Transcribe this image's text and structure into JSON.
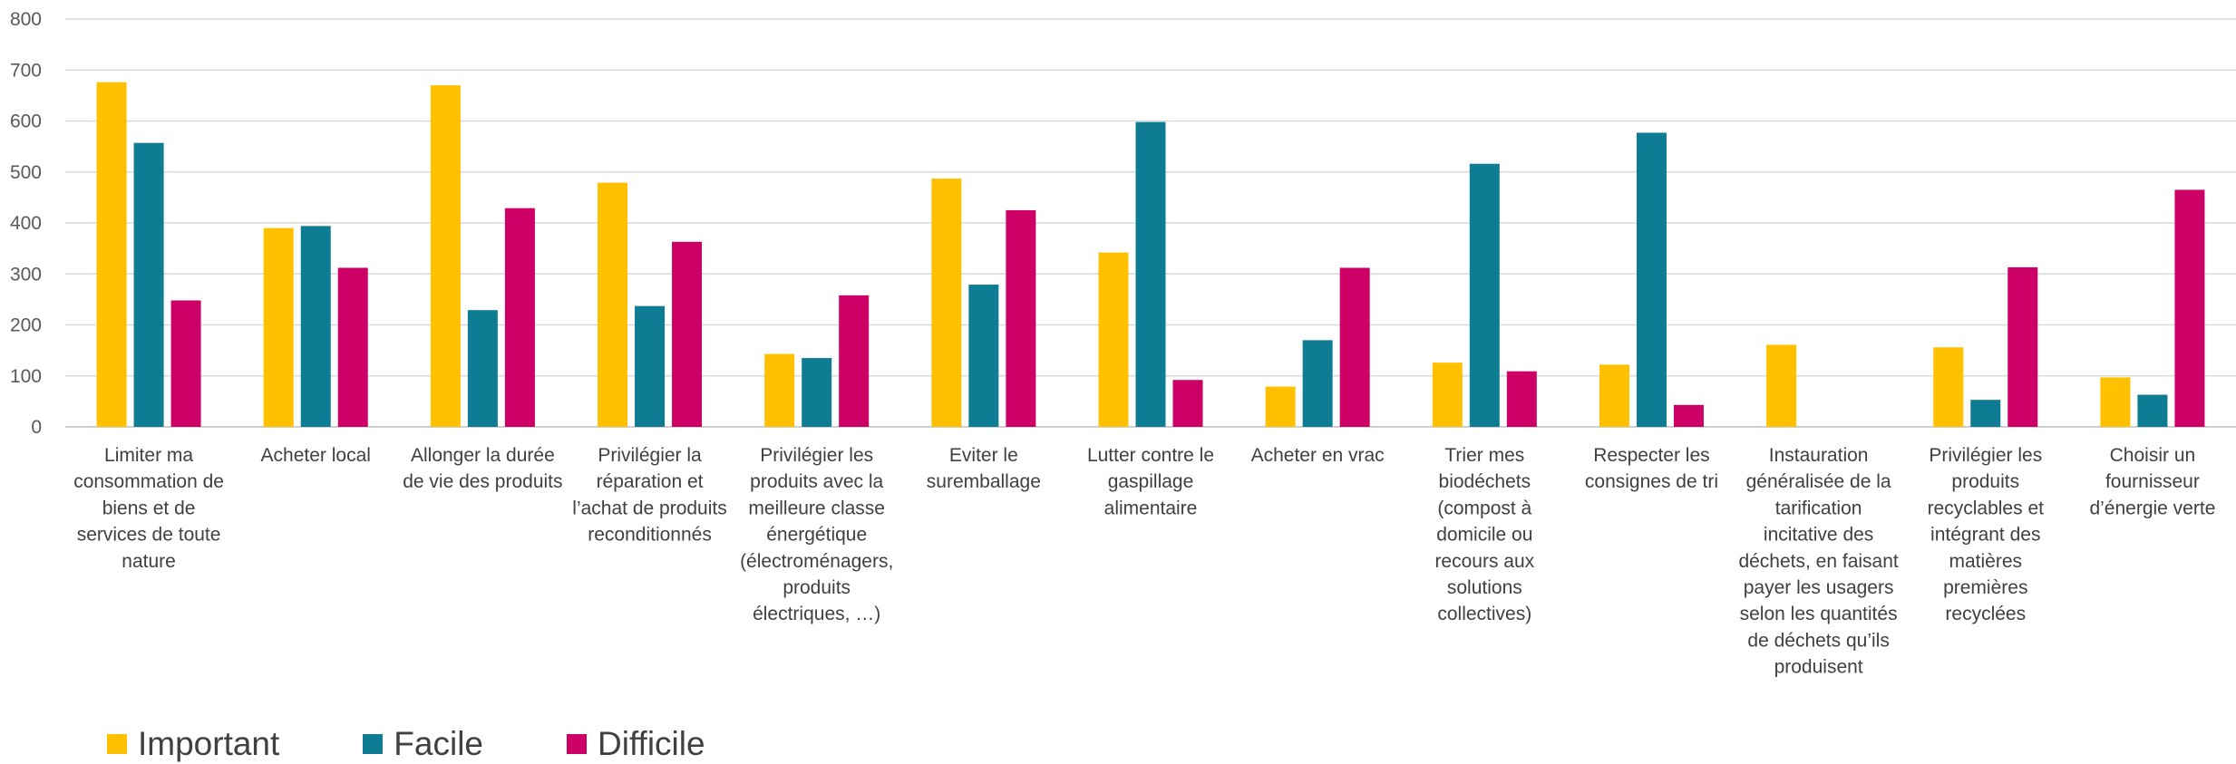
{
  "chart_data": {
    "type": "bar",
    "title": "",
    "xlabel": "",
    "ylabel": "",
    "ylim": [
      0,
      800
    ],
    "yticks": [
      0,
      100,
      200,
      300,
      400,
      500,
      600,
      700,
      800
    ],
    "grid": true,
    "legend_position": "bottom-left",
    "categories": [
      [
        "Limiter ma",
        "consommation de",
        "biens et de",
        "services de toute",
        "nature"
      ],
      [
        "Acheter local"
      ],
      [
        "Allonger la durée",
        "de vie des produits"
      ],
      [
        "Privilégier la",
        "réparation et",
        "l’achat de produits",
        "reconditionnés"
      ],
      [
        "Privilégier les",
        "produits avec la",
        "meilleure classe",
        "énergétique",
        "(électroménagers,",
        "produits",
        "électriques, …)"
      ],
      [
        "Eviter le",
        "suremballage"
      ],
      [
        "Lutter contre le",
        "gaspillage",
        "alimentaire"
      ],
      [
        "Acheter en vrac"
      ],
      [
        "Trier mes",
        "biodéchets",
        "(compost à",
        "domicile ou",
        "recours aux",
        "solutions",
        "collectives)"
      ],
      [
        "Respecter les",
        "consignes de tri"
      ],
      [
        "Instauration",
        "généralisée de la",
        "tarification",
        "incitative des",
        "déchets, en faisant",
        "payer les usagers",
        "selon les quantités",
        "de déchets qu’ils",
        "produisent"
      ],
      [
        "Privilégier les",
        "produits",
        "recyclables et",
        "intégrant des",
        "matières",
        "premières",
        "recyclées"
      ],
      [
        "Choisir un",
        "fournisseur",
        "d’énergie verte"
      ]
    ],
    "series": [
      {
        "name": "Important",
        "color": "#FFC000",
        "values": [
          676,
          390,
          670,
          479,
          143,
          487,
          342,
          79,
          126,
          122,
          161,
          156,
          97
        ]
      },
      {
        "name": "Facile",
        "color": "#0E7C93",
        "values": [
          557,
          394,
          229,
          237,
          135,
          279,
          598,
          170,
          516,
          577,
          0,
          53,
          63
        ]
      },
      {
        "name": "Difficile",
        "color": "#CC0066",
        "values": [
          248,
          312,
          429,
          363,
          258,
          425,
          92,
          312,
          109,
          43,
          0,
          313,
          465
        ]
      }
    ]
  }
}
